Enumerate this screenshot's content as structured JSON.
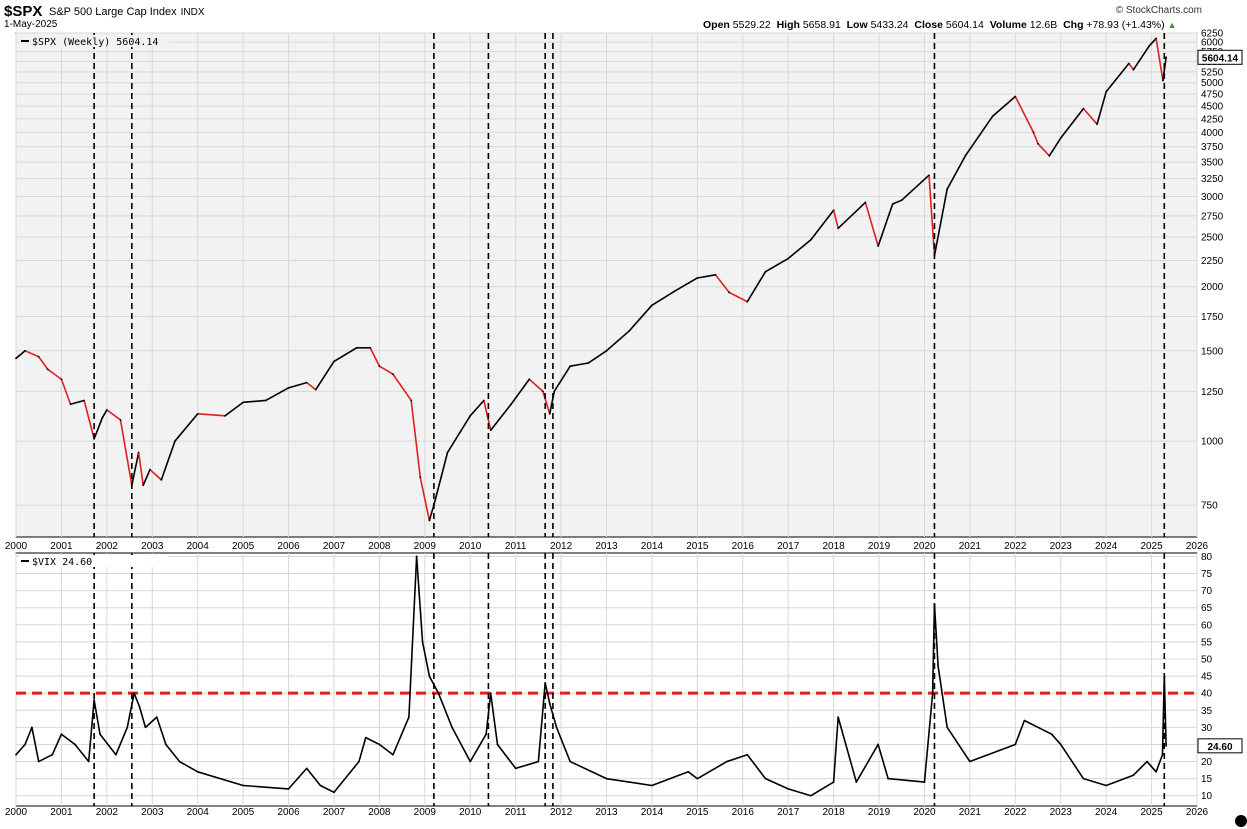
{
  "header": {
    "symbol": "$SPX",
    "name": "S&P 500 Large Cap Index",
    "exchange": "INDX",
    "date": "1-May-2025",
    "brand": "© StockCharts.com",
    "open_label": "Open",
    "open": "5529.22",
    "high_label": "High",
    "high": "5658.91",
    "low_label": "Low",
    "low": "5433.24",
    "close_label": "Close",
    "close": "5604.14",
    "volume_label": "Volume",
    "volume": "12.6B",
    "chg_label": "Chg",
    "chg": "+78.93 (+1.43%)",
    "chg_arrow": "▲"
  },
  "colors": {
    "up": "#000000",
    "down": "#e02020",
    "threshold": "#e02020",
    "grid": "#d8d8d8",
    "panel_bg": "#f2f2f2"
  },
  "chart_data": [
    {
      "type": "line",
      "legend": "$SPX (Weekly) 5604.14",
      "scale": "log",
      "ylim": [
        650,
        6250
      ],
      "xlim": [
        2000,
        2026
      ],
      "yticks": [
        750,
        1000,
        1250,
        1500,
        1750,
        2000,
        2250,
        2500,
        2750,
        3000,
        3250,
        3500,
        3750,
        4000,
        4250,
        4500,
        4750,
        5000,
        5250,
        5500,
        5750,
        6000,
        6250
      ],
      "last_label": "5604.14",
      "series": [
        {
          "x": [
            2000.0,
            2000.2,
            2000.5,
            2000.7,
            2001.0,
            2001.2,
            2001.5,
            2001.72,
            2001.9,
            2002.0,
            2002.3,
            2002.55,
            2002.7,
            2002.8,
            2002.95,
            2003.2,
            2003.5,
            2004.0,
            2004.6,
            2005.0,
            2005.5,
            2006.0,
            2006.4,
            2006.6,
            2007.0,
            2007.5,
            2007.8,
            2008.0,
            2008.3,
            2008.7,
            2008.9,
            2009.1,
            2009.2,
            2009.5,
            2010.0,
            2010.3,
            2010.45,
            2010.9,
            2011.3,
            2011.6,
            2011.75,
            2011.85,
            2012.2,
            2012.6,
            2013.0,
            2013.5,
            2014.0,
            2014.5,
            2015.0,
            2015.4,
            2015.7,
            2016.1,
            2016.5,
            2017.0,
            2017.5,
            2018.0,
            2018.1,
            2018.7,
            2018.98,
            2019.3,
            2019.5,
            2020.1,
            2020.22,
            2020.5,
            2020.9,
            2021.5,
            2022.0,
            2022.4,
            2022.5,
            2022.75,
            2023.0,
            2023.5,
            2023.8,
            2024.0,
            2024.5,
            2024.6,
            2024.95,
            2025.1,
            2025.25,
            2025.32
          ],
          "values": [
            1450,
            1500,
            1460,
            1380,
            1320,
            1180,
            1200,
            1010,
            1110,
            1150,
            1100,
            820,
            950,
            820,
            880,
            840,
            1000,
            1130,
            1120,
            1190,
            1200,
            1270,
            1300,
            1260,
            1430,
            1520,
            1520,
            1400,
            1350,
            1200,
            850,
            700,
            750,
            950,
            1120,
            1200,
            1050,
            1180,
            1320,
            1250,
            1130,
            1250,
            1400,
            1420,
            1500,
            1640,
            1840,
            1960,
            2080,
            2110,
            1950,
            1870,
            2140,
            2270,
            2470,
            2820,
            2600,
            2920,
            2400,
            2900,
            2950,
            3300,
            2300,
            3100,
            3600,
            4300,
            4700,
            4000,
            3800,
            3600,
            3900,
            4450,
            4150,
            4800,
            5450,
            5300,
            5900,
            6100,
            5050,
            5604
          ]
        }
      ]
    },
    {
      "type": "line",
      "legend": "$VIX 24.60",
      "scale": "linear",
      "ylim": [
        7,
        81
      ],
      "xlim": [
        2000,
        2026
      ],
      "yticks": [
        10,
        15,
        20,
        25,
        30,
        35,
        40,
        45,
        50,
        55,
        60,
        65,
        70,
        75,
        80
      ],
      "threshold": 40,
      "last_label": "24.60",
      "series": [
        {
          "x": [
            2000.0,
            2000.2,
            2000.35,
            2000.5,
            2000.8,
            2001.0,
            2001.3,
            2001.6,
            2001.72,
            2001.85,
            2002.2,
            2002.45,
            2002.6,
            2002.72,
            2002.85,
            2003.1,
            2003.3,
            2003.6,
            2004.0,
            2005.0,
            2006.0,
            2006.4,
            2006.7,
            2007.0,
            2007.55,
            2007.7,
            2008.0,
            2008.3,
            2008.65,
            2008.82,
            2008.95,
            2009.1,
            2009.3,
            2009.6,
            2010.0,
            2010.35,
            2010.45,
            2010.6,
            2011.0,
            2011.5,
            2011.65,
            2011.75,
            2011.9,
            2012.2,
            2013.0,
            2014.0,
            2014.8,
            2015.0,
            2015.65,
            2016.1,
            2016.5,
            2017.0,
            2017.5,
            2018.0,
            2018.1,
            2018.5,
            2018.98,
            2019.2,
            2020.0,
            2020.18,
            2020.22,
            2020.3,
            2020.5,
            2021.0,
            2022.0,
            2022.2,
            2022.8,
            2023.0,
            2023.5,
            2024.0,
            2024.6,
            2024.9,
            2025.1,
            2025.24,
            2025.28,
            2025.32
          ],
          "values": [
            22,
            25,
            30,
            20,
            22,
            28,
            25,
            20,
            38,
            28,
            22,
            30,
            40,
            36,
            30,
            33,
            25,
            20,
            17,
            13,
            12,
            18,
            13,
            11,
            20,
            27,
            25,
            22,
            33,
            80,
            55,
            45,
            40,
            30,
            20,
            28,
            40,
            25,
            18,
            20,
            43,
            37,
            30,
            20,
            15,
            13,
            17,
            15,
            20,
            22,
            15,
            12,
            10,
            14,
            33,
            14,
            25,
            15,
            14,
            40,
            66,
            48,
            30,
            20,
            25,
            32,
            28,
            25,
            15,
            13,
            16,
            20,
            17,
            22,
            45,
            24.6
          ]
        }
      ]
    }
  ],
  "x_tick_labels": [
    "2000",
    "2001",
    "2002",
    "2003",
    "2004",
    "2005",
    "2006",
    "2007",
    "2008",
    "2009",
    "2010",
    "2011",
    "2012",
    "2013",
    "2014",
    "2015",
    "2016",
    "2017",
    "2018",
    "2019",
    "2020",
    "2021",
    "2022",
    "2023",
    "2024",
    "2025",
    "2026"
  ],
  "event_markers": [
    2001.72,
    2002.55,
    2009.2,
    2010.4,
    2011.65,
    2011.82,
    2020.22,
    2025.28
  ]
}
